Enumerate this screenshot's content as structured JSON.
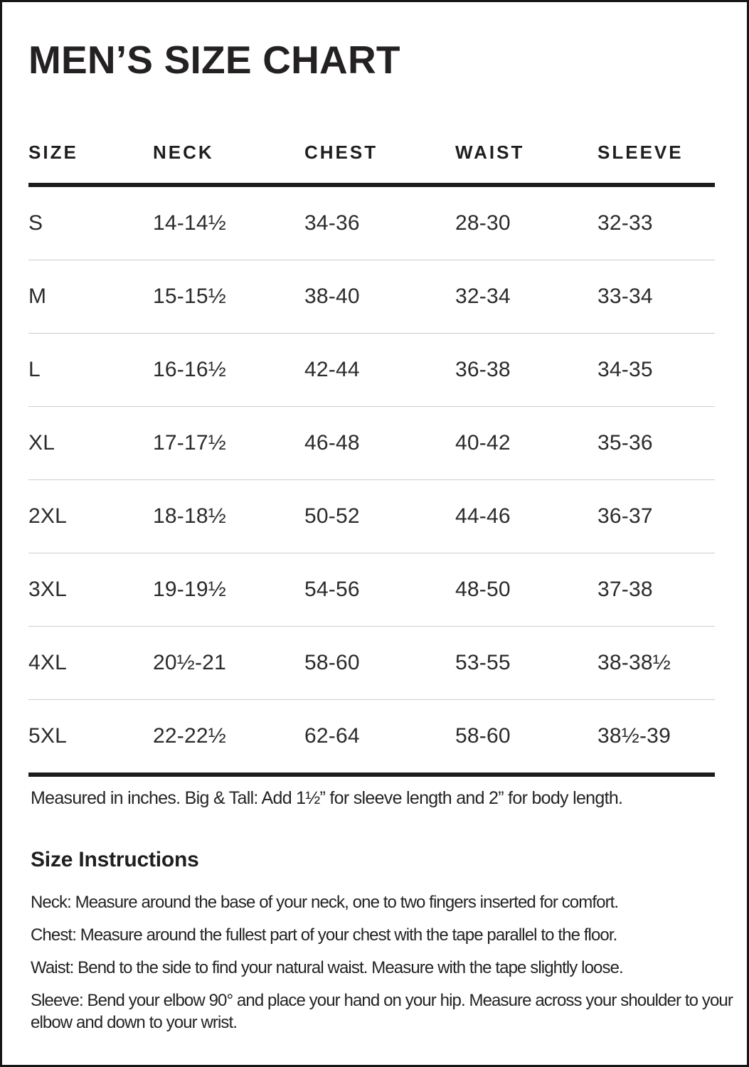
{
  "title": "MEN’S SIZE CHART",
  "table": {
    "headers": [
      "SIZE",
      "NECK",
      "CHEST",
      "WAIST",
      "SLEEVE"
    ],
    "rows": [
      [
        "S",
        "14-14½",
        "34-36",
        "28-30",
        "32-33"
      ],
      [
        "M",
        "15-15½",
        "38-40",
        "32-34",
        "33-34"
      ],
      [
        "L",
        "16-16½",
        "42-44",
        "36-38",
        "34-35"
      ],
      [
        "XL",
        "17-17½",
        "46-48",
        "40-42",
        "35-36"
      ],
      [
        "2XL",
        "18-18½",
        "50-52",
        "44-46",
        "36-37"
      ],
      [
        "3XL",
        "19-19½",
        "54-56",
        "48-50",
        "37-38"
      ],
      [
        "4XL",
        "20½-21",
        "58-60",
        "53-55",
        "38-38½"
      ],
      [
        "5XL",
        "22-22½",
        "62-64",
        "58-60",
        "38½-39"
      ]
    ]
  },
  "note": "Measured in inches. Big & Tall: Add 1½” for sleeve length and 2” for body length.",
  "instructions": {
    "heading": "Size Instructions",
    "items": [
      "Neck: Measure around the base of your neck, one to two fingers inserted for comfort.",
      "Chest: Measure around the fullest part of your chest with the tape parallel to the floor.",
      "Waist: Bend to the side to find your natural waist. Measure with the tape slightly loose.",
      "Sleeve: Bend your elbow 90° and place your hand on your hip. Measure across your shoulder to your elbow and down to your wrist."
    ]
  },
  "colors": {
    "text": "#212121",
    "rule": "#1c1c1c",
    "separator": "#cdcdcd",
    "background": "#ffffff"
  }
}
